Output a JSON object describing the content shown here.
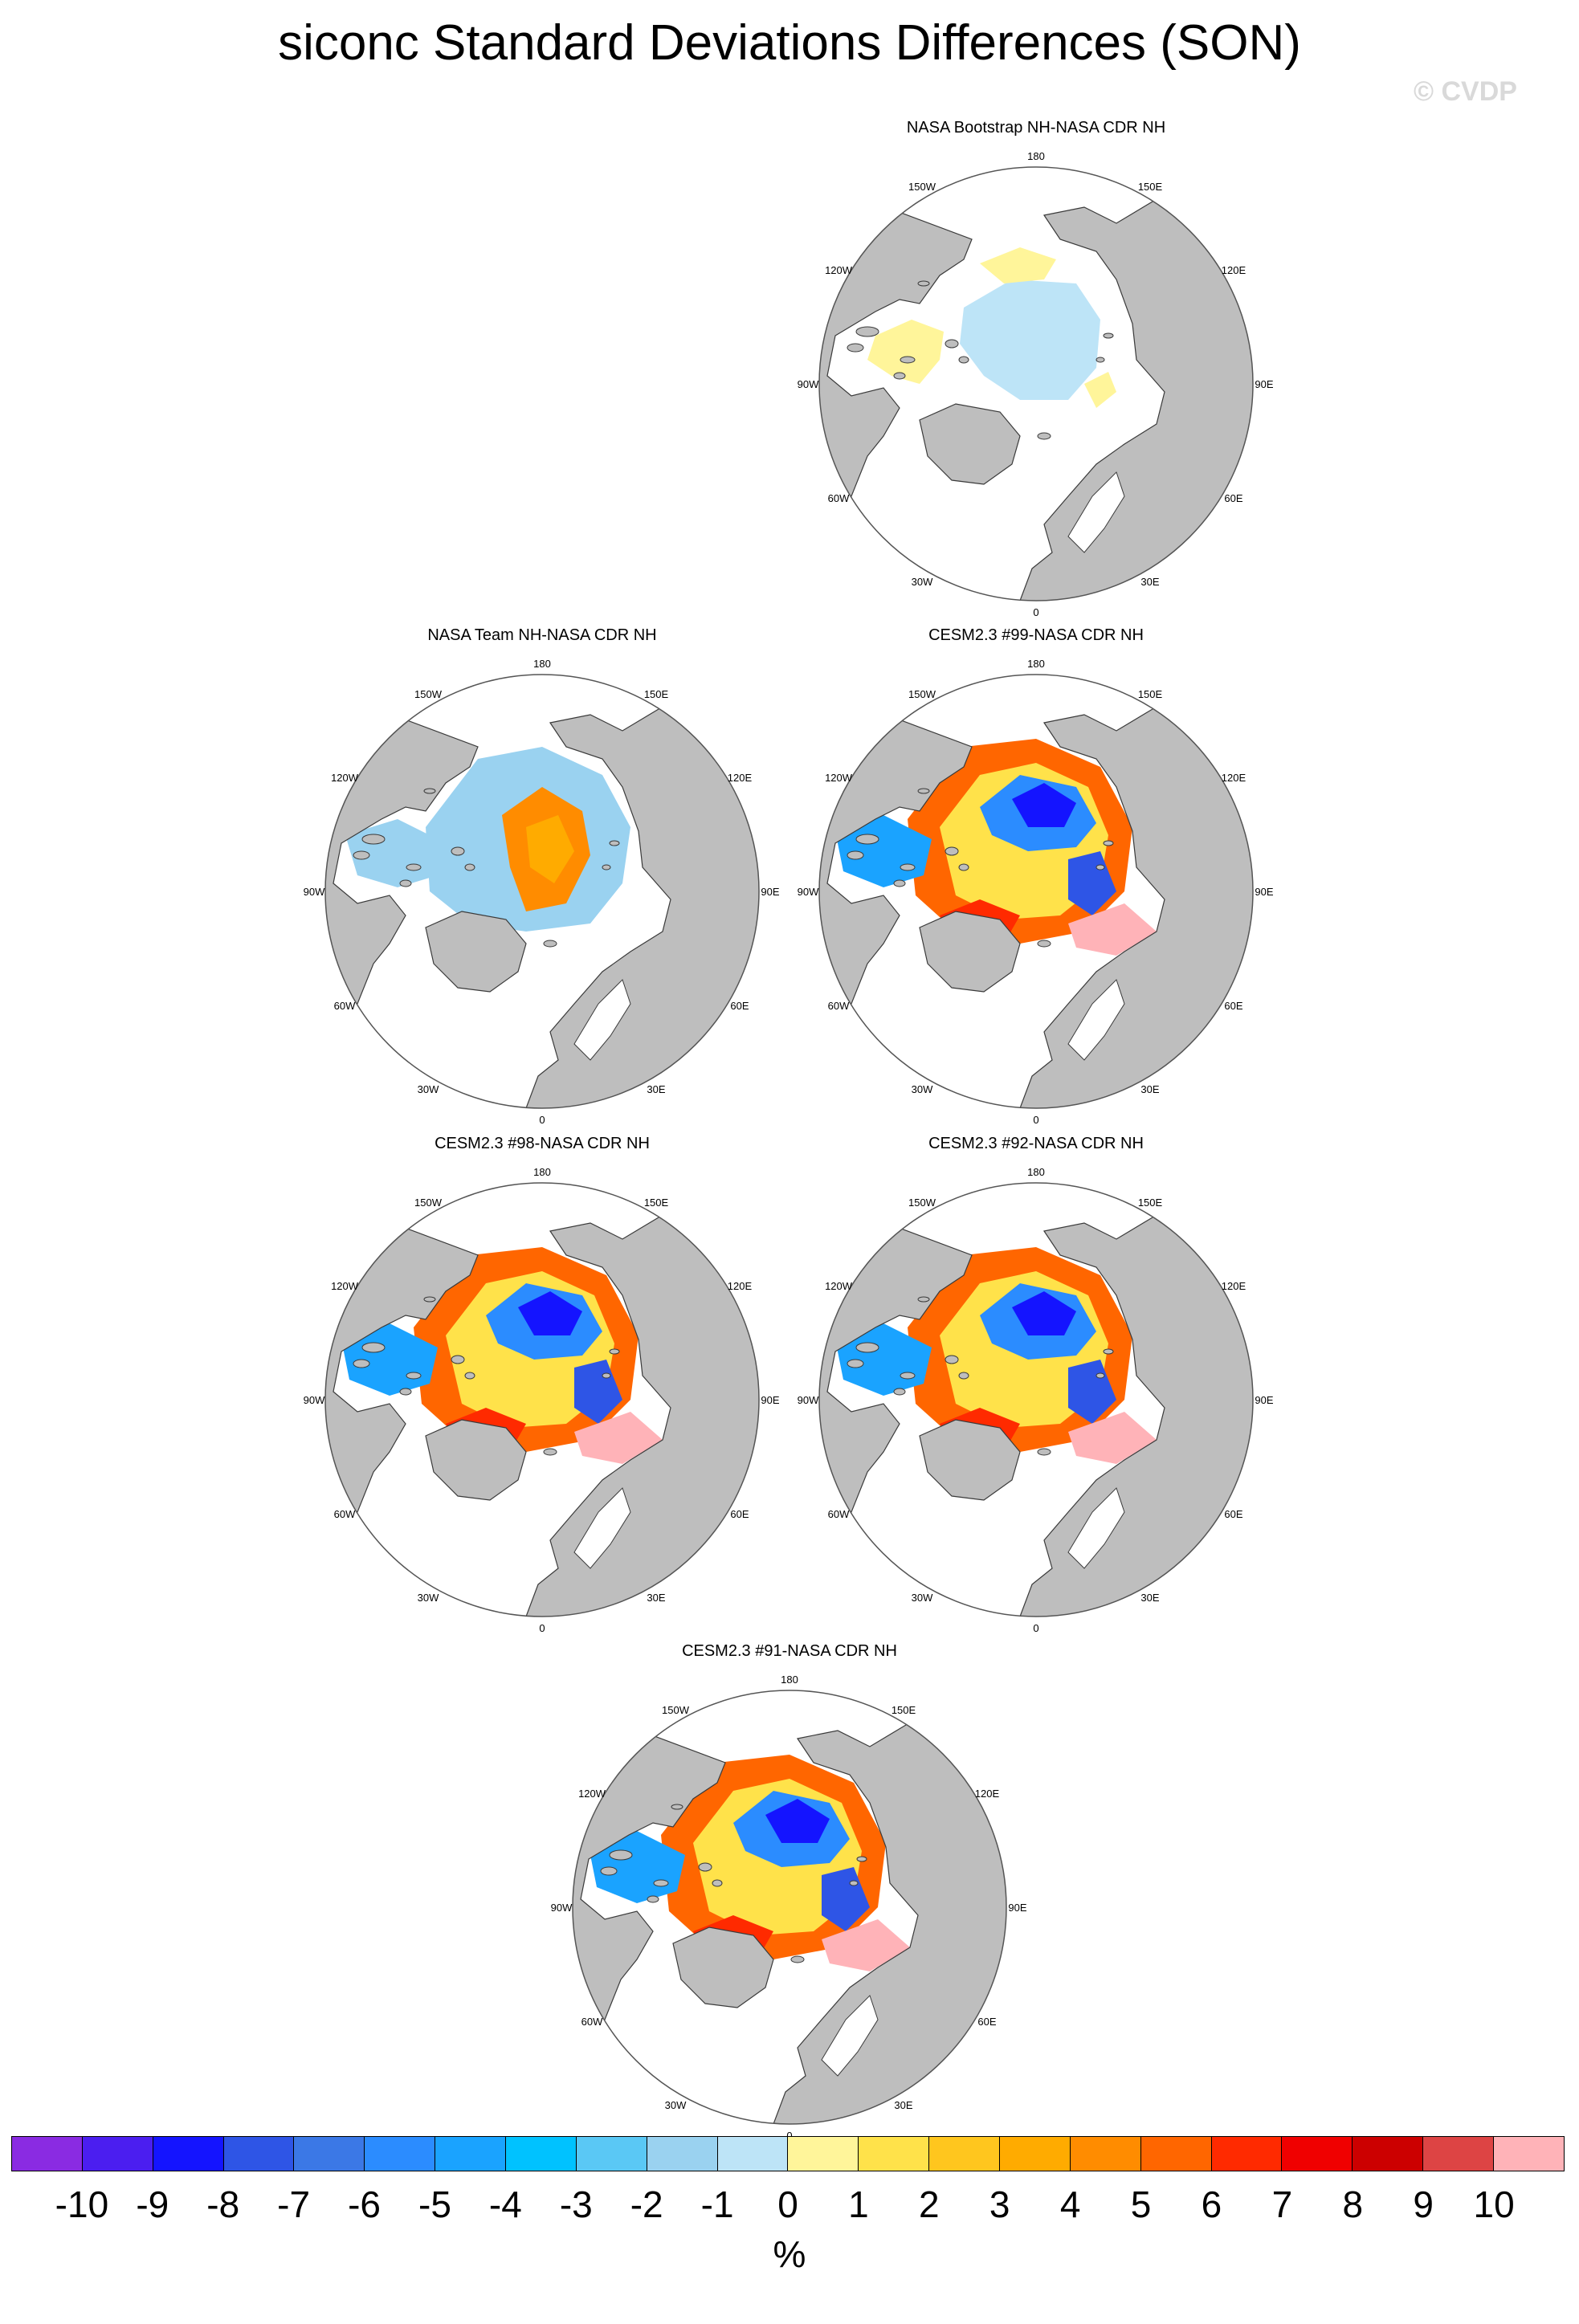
{
  "title": "siconc Standard Deviations Differences (SON)",
  "watermark": "© CVDP",
  "panels": [
    {
      "title": "NASA Bootstrap NH-NASA CDR NH",
      "pattern": "bootstrap"
    },
    {
      "title": "NASA Team NH-NASA CDR NH",
      "pattern": "team"
    },
    {
      "title": "CESM2.3 #99-NASA CDR NH",
      "pattern": "cesm"
    },
    {
      "title": "CESM2.3 #98-NASA CDR NH",
      "pattern": "cesm"
    },
    {
      "title": "CESM2.3 #92-NASA CDR NH",
      "pattern": "cesm"
    },
    {
      "title": "CESM2.3 #91-NASA CDR NH",
      "pattern": "cesm"
    }
  ],
  "lon_labels": {
    "top": "180",
    "bottom": "0",
    "left": "90W",
    "right": "90E",
    "upper_left": "150W",
    "upper_right": "150E",
    "mid_upper_left": "120W",
    "mid_upper_right": "120E",
    "mid_lower_left": "60W",
    "mid_lower_right": "60E",
    "lower_left": "30W",
    "lower_right": "30E"
  },
  "colorbar": {
    "colors": [
      "#8a2be2",
      "#4b1ef0",
      "#1414ff",
      "#2e55e6",
      "#3b78e6",
      "#2b8cff",
      "#1aa3ff",
      "#00c2ff",
      "#5ac8f5",
      "#9ad2f0",
      "#bde4f7",
      "#fff59a",
      "#ffe24a",
      "#ffc61e",
      "#ffab00",
      "#ff8c00",
      "#ff6600",
      "#ff2a00",
      "#f00000",
      "#cc0000",
      "#dd4444",
      "#ffb3b8"
    ],
    "ticks": [
      "-10",
      "-9",
      "-8",
      "-7",
      "-6",
      "-5",
      "-4",
      "-3",
      "-2",
      "-1",
      "0",
      "1",
      "2",
      "3",
      "4",
      "5",
      "6",
      "7",
      "8",
      "9",
      "10"
    ],
    "unit": "%"
  }
}
